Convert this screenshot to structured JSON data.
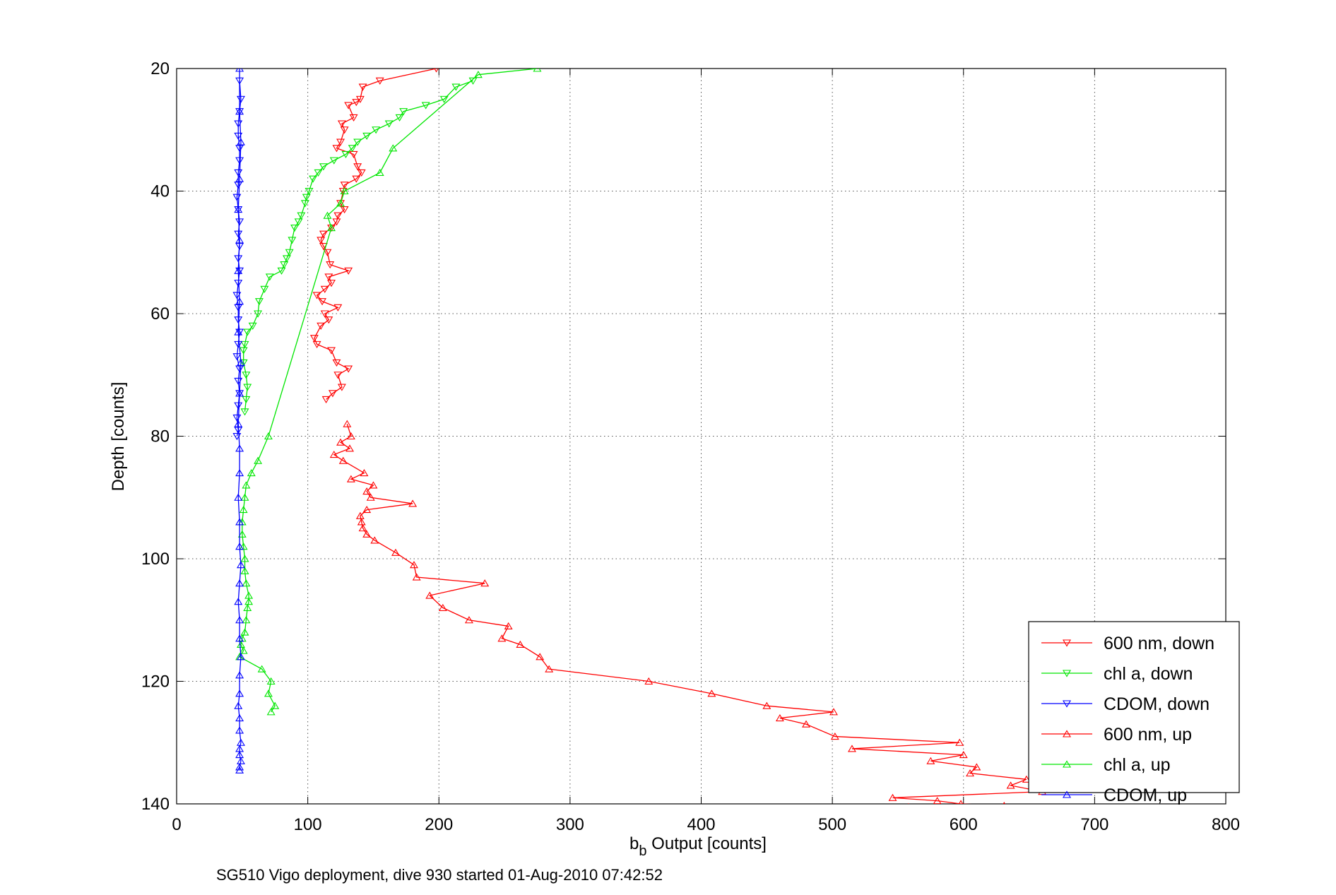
{
  "chart_data": {
    "type": "line",
    "xlabel_main": "b",
    "xlabel_sub": "b",
    "xlabel_rest": " Output [counts]",
    "ylabel": "Depth [counts]",
    "caption": "SG510 Vigo deployment, dive 930 started 01-Aug-2010 07:42:52",
    "xlim": [
      0,
      800
    ],
    "ylim": [
      20,
      140
    ],
    "y_reversed": true,
    "x_ticks": [
      "0",
      "100",
      "200",
      "300",
      "400",
      "500",
      "600",
      "700",
      "800"
    ],
    "y_ticks": [
      "20",
      "40",
      "60",
      "80",
      "100",
      "120",
      "140"
    ],
    "grid": true,
    "legend_position": "bottom-right",
    "series": [
      {
        "name": "600 nm, down",
        "color": "#ff0000",
        "marker": "down",
        "x": [
          198,
          155,
          142,
          140,
          137,
          131,
          135,
          126,
          128,
          125,
          122,
          135,
          138,
          141,
          137,
          128,
          127,
          125,
          128,
          123,
          122,
          118,
          112,
          110,
          112,
          115,
          117,
          131,
          116,
          118,
          113,
          107,
          111,
          123,
          113,
          116,
          110,
          105,
          107,
          118,
          122,
          131,
          123,
          126,
          119,
          114
        ],
        "y": [
          20,
          22,
          23,
          25,
          25.5,
          26,
          28,
          29,
          30,
          32,
          33,
          34,
          36,
          37,
          38,
          39,
          40,
          42,
          43,
          44,
          45,
          46,
          47,
          48,
          49,
          50,
          52,
          53,
          54,
          55,
          56,
          57,
          58,
          59,
          60,
          61,
          62,
          64,
          65,
          66,
          68,
          69,
          70,
          72,
          73,
          74
        ]
      },
      {
        "name": "chl a, down",
        "color": "#00e600",
        "marker": "down",
        "x": [
          226,
          213,
          204,
          190,
          173,
          170,
          162,
          152,
          145,
          138,
          134,
          129,
          120,
          112,
          108,
          104,
          101,
          99,
          98,
          95,
          93,
          90,
          88,
          86,
          84,
          82,
          80,
          71,
          67,
          63,
          62,
          58,
          54,
          52,
          51,
          51,
          53,
          54,
          53,
          52
        ],
        "y": [
          22,
          23,
          25,
          26,
          27,
          28,
          29,
          30,
          31,
          32,
          33,
          34,
          35,
          36,
          37,
          38,
          40,
          41,
          42,
          44,
          45,
          46,
          48,
          50,
          51,
          52,
          53,
          54,
          56,
          58,
          60,
          62,
          63,
          65,
          66,
          68,
          70,
          72,
          74,
          76
        ]
      },
      {
        "name": "CDOM, down",
        "color": "#0000ff",
        "marker": "down",
        "x": [
          48,
          49,
          48,
          47,
          47,
          48,
          48,
          47,
          47,
          46,
          47,
          48,
          47,
          48,
          47,
          48,
          47,
          46,
          47,
          47,
          48,
          47,
          46,
          48,
          47,
          48,
          47,
          46,
          47,
          46
        ],
        "y": [
          22,
          25,
          27,
          29,
          31,
          33,
          35,
          37,
          39,
          41,
          43,
          45,
          47,
          49,
          51,
          53,
          55,
          57,
          59,
          61,
          63,
          65,
          67,
          69,
          71,
          73,
          75,
          77,
          79,
          80
        ]
      },
      {
        "name": "600 nm, up",
        "color": "#ff0000",
        "marker": "up",
        "x": [
          130,
          133,
          125,
          132,
          120,
          127,
          143,
          133,
          150,
          145,
          148,
          180,
          145,
          140,
          141,
          142,
          145,
          151,
          167,
          181,
          183,
          235,
          193,
          203,
          223,
          253,
          248,
          262,
          277,
          284,
          360,
          408,
          450,
          501,
          460,
          480,
          502,
          597,
          515,
          600,
          575,
          610,
          605,
          648,
          636,
          660,
          546,
          580,
          598,
          631,
          558
        ],
        "y": [
          78,
          80,
          81,
          82,
          83,
          84,
          86,
          87,
          88,
          89,
          90,
          91,
          92,
          93,
          94,
          95,
          96,
          97,
          99,
          101,
          103,
          104,
          106,
          108,
          110,
          111,
          113,
          114,
          116,
          118,
          120,
          122,
          124,
          125,
          126,
          127,
          129,
          130,
          131,
          132,
          133,
          134,
          135,
          136,
          137,
          138,
          139,
          139.5,
          140,
          140.3,
          140.5
        ]
      },
      {
        "name": "chl a, up",
        "color": "#00e600",
        "marker": "up",
        "x": [
          275,
          230,
          165,
          155,
          128,
          125,
          115,
          118,
          70,
          62,
          57,
          53,
          52,
          51,
          50,
          50,
          51,
          52,
          52,
          53,
          55,
          55,
          54,
          53,
          52,
          50,
          49,
          51,
          48,
          65,
          72,
          70,
          75,
          72
        ],
        "y": [
          20,
          21,
          33,
          37,
          40,
          42,
          44,
          46,
          80,
          84,
          86,
          88,
          90,
          92,
          94,
          96,
          98,
          100,
          102,
          104,
          106,
          107,
          108,
          110,
          112,
          113,
          114,
          115,
          116,
          118,
          120,
          122,
          124,
          125
        ]
      },
      {
        "name": "CDOM, up",
        "color": "#0000ff",
        "marker": "up",
        "x": [
          48,
          48,
          49,
          48,
          47,
          48,
          47,
          48,
          47,
          49,
          48,
          47,
          48,
          48,
          47,
          48,
          48,
          49,
          48,
          47,
          48,
          48,
          49,
          48,
          48,
          47,
          48,
          48,
          49,
          48,
          48,
          49,
          48,
          48
        ],
        "y": [
          20,
          27,
          32,
          38,
          43,
          48,
          53,
          58,
          63,
          68,
          73,
          78,
          82,
          86,
          90,
          94,
          98,
          101,
          104,
          107,
          110,
          113,
          116,
          119,
          122,
          124,
          126,
          128,
          130,
          131,
          132,
          133,
          134,
          134.5
        ]
      }
    ]
  }
}
